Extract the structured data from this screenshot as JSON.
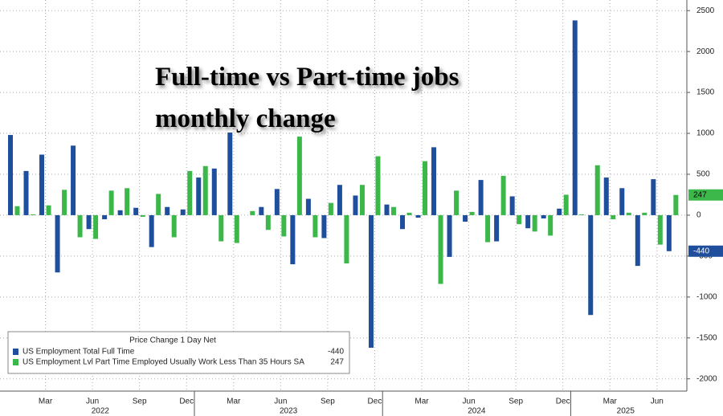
{
  "chart_data": {
    "type": "bar",
    "title": "Full-time vs  Part-time jobs monthly change",
    "legend_title": "Price Change 1 Day Net",
    "categories": [
      null,
      null,
      "Mar",
      null,
      null,
      "Jun",
      null,
      null,
      "Sep",
      null,
      null,
      "Dec",
      null,
      null,
      "Mar",
      null,
      null,
      "Jun",
      null,
      null,
      "Sep",
      null,
      null,
      "Dec",
      null,
      null,
      "Mar",
      null,
      null,
      "Jun",
      null,
      null,
      "Sep",
      null,
      null,
      "Dec",
      null,
      null,
      "Mar",
      null,
      null,
      "Jun",
      null
    ],
    "years": [
      "2022",
      "2023",
      "2024",
      "2025"
    ],
    "series": [
      {
        "name": "US Employment Total Full Time",
        "color": "#1f4e9c",
        "values": [
          980,
          540,
          740,
          -700,
          850,
          -170,
          -50,
          60,
          90,
          -390,
          100,
          70,
          460,
          570,
          1010,
          0,
          100,
          320,
          -600,
          200,
          -280,
          370,
          240,
          -1620,
          130,
          -170,
          -30,
          830,
          -510,
          -80,
          430,
          -320,
          230,
          -160,
          -40,
          80,
          2380,
          -1220,
          460,
          330,
          -620,
          440,
          -440
        ]
      },
      {
        "name": "US Employment Lvl Part Time Employed Usually Work Less Than 35 Hours SA",
        "color": "#3cb84a",
        "values": [
          110,
          10,
          120,
          310,
          -270,
          -290,
          300,
          330,
          -20,
          260,
          -270,
          540,
          600,
          -320,
          -340,
          50,
          -180,
          -260,
          960,
          -270,
          150,
          -590,
          370,
          720,
          100,
          30,
          660,
          -840,
          300,
          40,
          -330,
          480,
          -110,
          -200,
          -250,
          250,
          10,
          610,
          -50,
          30,
          30,
          -360,
          247
        ]
      }
    ],
    "ylim": [
      -2150,
      2600
    ],
    "yticks": [
      -2000,
      -1500,
      -1000,
      -500,
      0,
      500,
      1000,
      1500,
      2000,
      2500
    ],
    "grid": true
  }
}
